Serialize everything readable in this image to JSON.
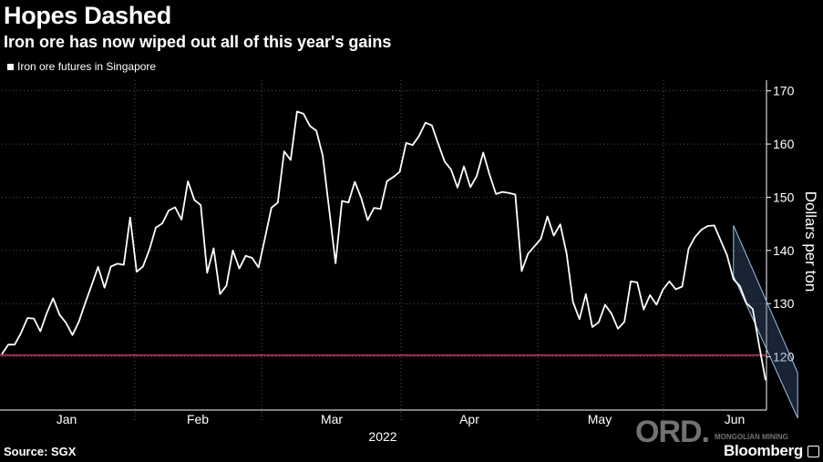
{
  "title": "Hopes Dashed",
  "subtitle": "Iron ore has now wiped out all of this year's gains",
  "legend_label": "Iron ore futures in Singapore",
  "source": "Source: SGX",
  "brand": "Bloomberg",
  "watermark": {
    "mark": "ORD.",
    "sub": "MONGOLIAN MINING"
  },
  "colors": {
    "line": "#ffffff",
    "reference_line": "#e0407a",
    "channel": "#9fc0e8",
    "grid": "#555555"
  },
  "chart_data": {
    "type": "line",
    "title": "Hopes Dashed",
    "subtitle": "Iron ore has now wiped out all of this year's gains",
    "xlabel": "2022",
    "ylabel": "Dollars per ton",
    "ylim": [
      110,
      172
    ],
    "yticks": [
      120,
      130,
      140,
      150,
      160,
      170
    ],
    "x_ticks": [
      "Jan",
      "Feb",
      "Mar",
      "Apr",
      "May",
      "Jun"
    ],
    "year": "2022",
    "reference_line": 120.3,
    "series": [
      {
        "name": "Iron ore futures in Singapore",
        "values": [
          120.5,
          122.3,
          122.3,
          124.5,
          127.3,
          127.2,
          124.8,
          128.2,
          131.0,
          127.9,
          126.4,
          124.1,
          126.6,
          130.1,
          133.5,
          136.9,
          133.0,
          137.0,
          137.5,
          137.3,
          146.2,
          136.0,
          137.0,
          140.2,
          144.3,
          145.1,
          147.5,
          148.1,
          145.8,
          153.0,
          149.5,
          148.5,
          135.8,
          140.4,
          131.8,
          133.4,
          140.0,
          136.6,
          139.0,
          138.6,
          136.8,
          142.3,
          148.0,
          149.0,
          158.6,
          157.0,
          166.1,
          165.7,
          163.4,
          162.5,
          157.8,
          147.8,
          137.6,
          149.3,
          149.0,
          152.9,
          149.8,
          145.7,
          148.0,
          147.8,
          153.0,
          153.8,
          154.8,
          160.2,
          159.8,
          161.5,
          164.0,
          163.5,
          160.0,
          156.7,
          155.2,
          151.8,
          155.8,
          151.9,
          154.0,
          158.4,
          154.2,
          150.6,
          151.0,
          150.8,
          150.5,
          136.1,
          139.4,
          140.8,
          142.2,
          146.4,
          142.8,
          144.9,
          139.4,
          130.3,
          127.1,
          131.8,
          125.6,
          126.5,
          129.8,
          128.1,
          125.3,
          126.6,
          134.2,
          134.0,
          128.9,
          131.6,
          129.8,
          132.6,
          134.2,
          132.7,
          133.2,
          140.3,
          142.5,
          143.9,
          144.6,
          144.7,
          141.9,
          139.1,
          134.6,
          133.3,
          130.1,
          129.0,
          122.1,
          115.6
        ]
      }
    ],
    "trend_channel": {
      "x": [
        114,
        124
      ],
      "upper": [
        144.7,
        117.0
      ],
      "lower": [
        135.2,
        108.5
      ]
    }
  }
}
